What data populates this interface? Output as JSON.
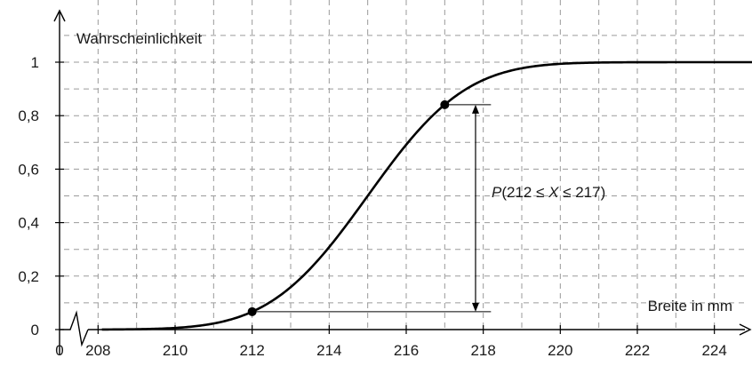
{
  "chart_data": {
    "type": "line",
    "ylabel": "Wahrscheinlichkeit",
    "xlabel": "Breite in mm",
    "x_origin_label": "0",
    "x_axis_break": true,
    "xlim": [
      207,
      225
    ],
    "ylim": [
      0,
      1
    ],
    "x_ticks": [
      "208",
      "210",
      "212",
      "214",
      "216",
      "218",
      "220",
      "222",
      "224"
    ],
    "y_ticks": [
      "0",
      "0,2",
      "0,4",
      "0,6",
      "0,8",
      "1"
    ],
    "curve": {
      "kind": "normal-cdf",
      "mean": 215,
      "sd": 2
    },
    "points": [
      {
        "x": 212,
        "y": 0.067
      },
      {
        "x": 217,
        "y": 0.841
      }
    ],
    "annotation": {
      "text_italic_1": "P",
      "text_1": "(212 ≤ ",
      "text_italic_2": "X",
      "text_2": " ≤ 217)"
    },
    "grid": true,
    "colors": {
      "curve": "#000000",
      "grid": "#9a9a9a",
      "axis": "#000000"
    }
  }
}
